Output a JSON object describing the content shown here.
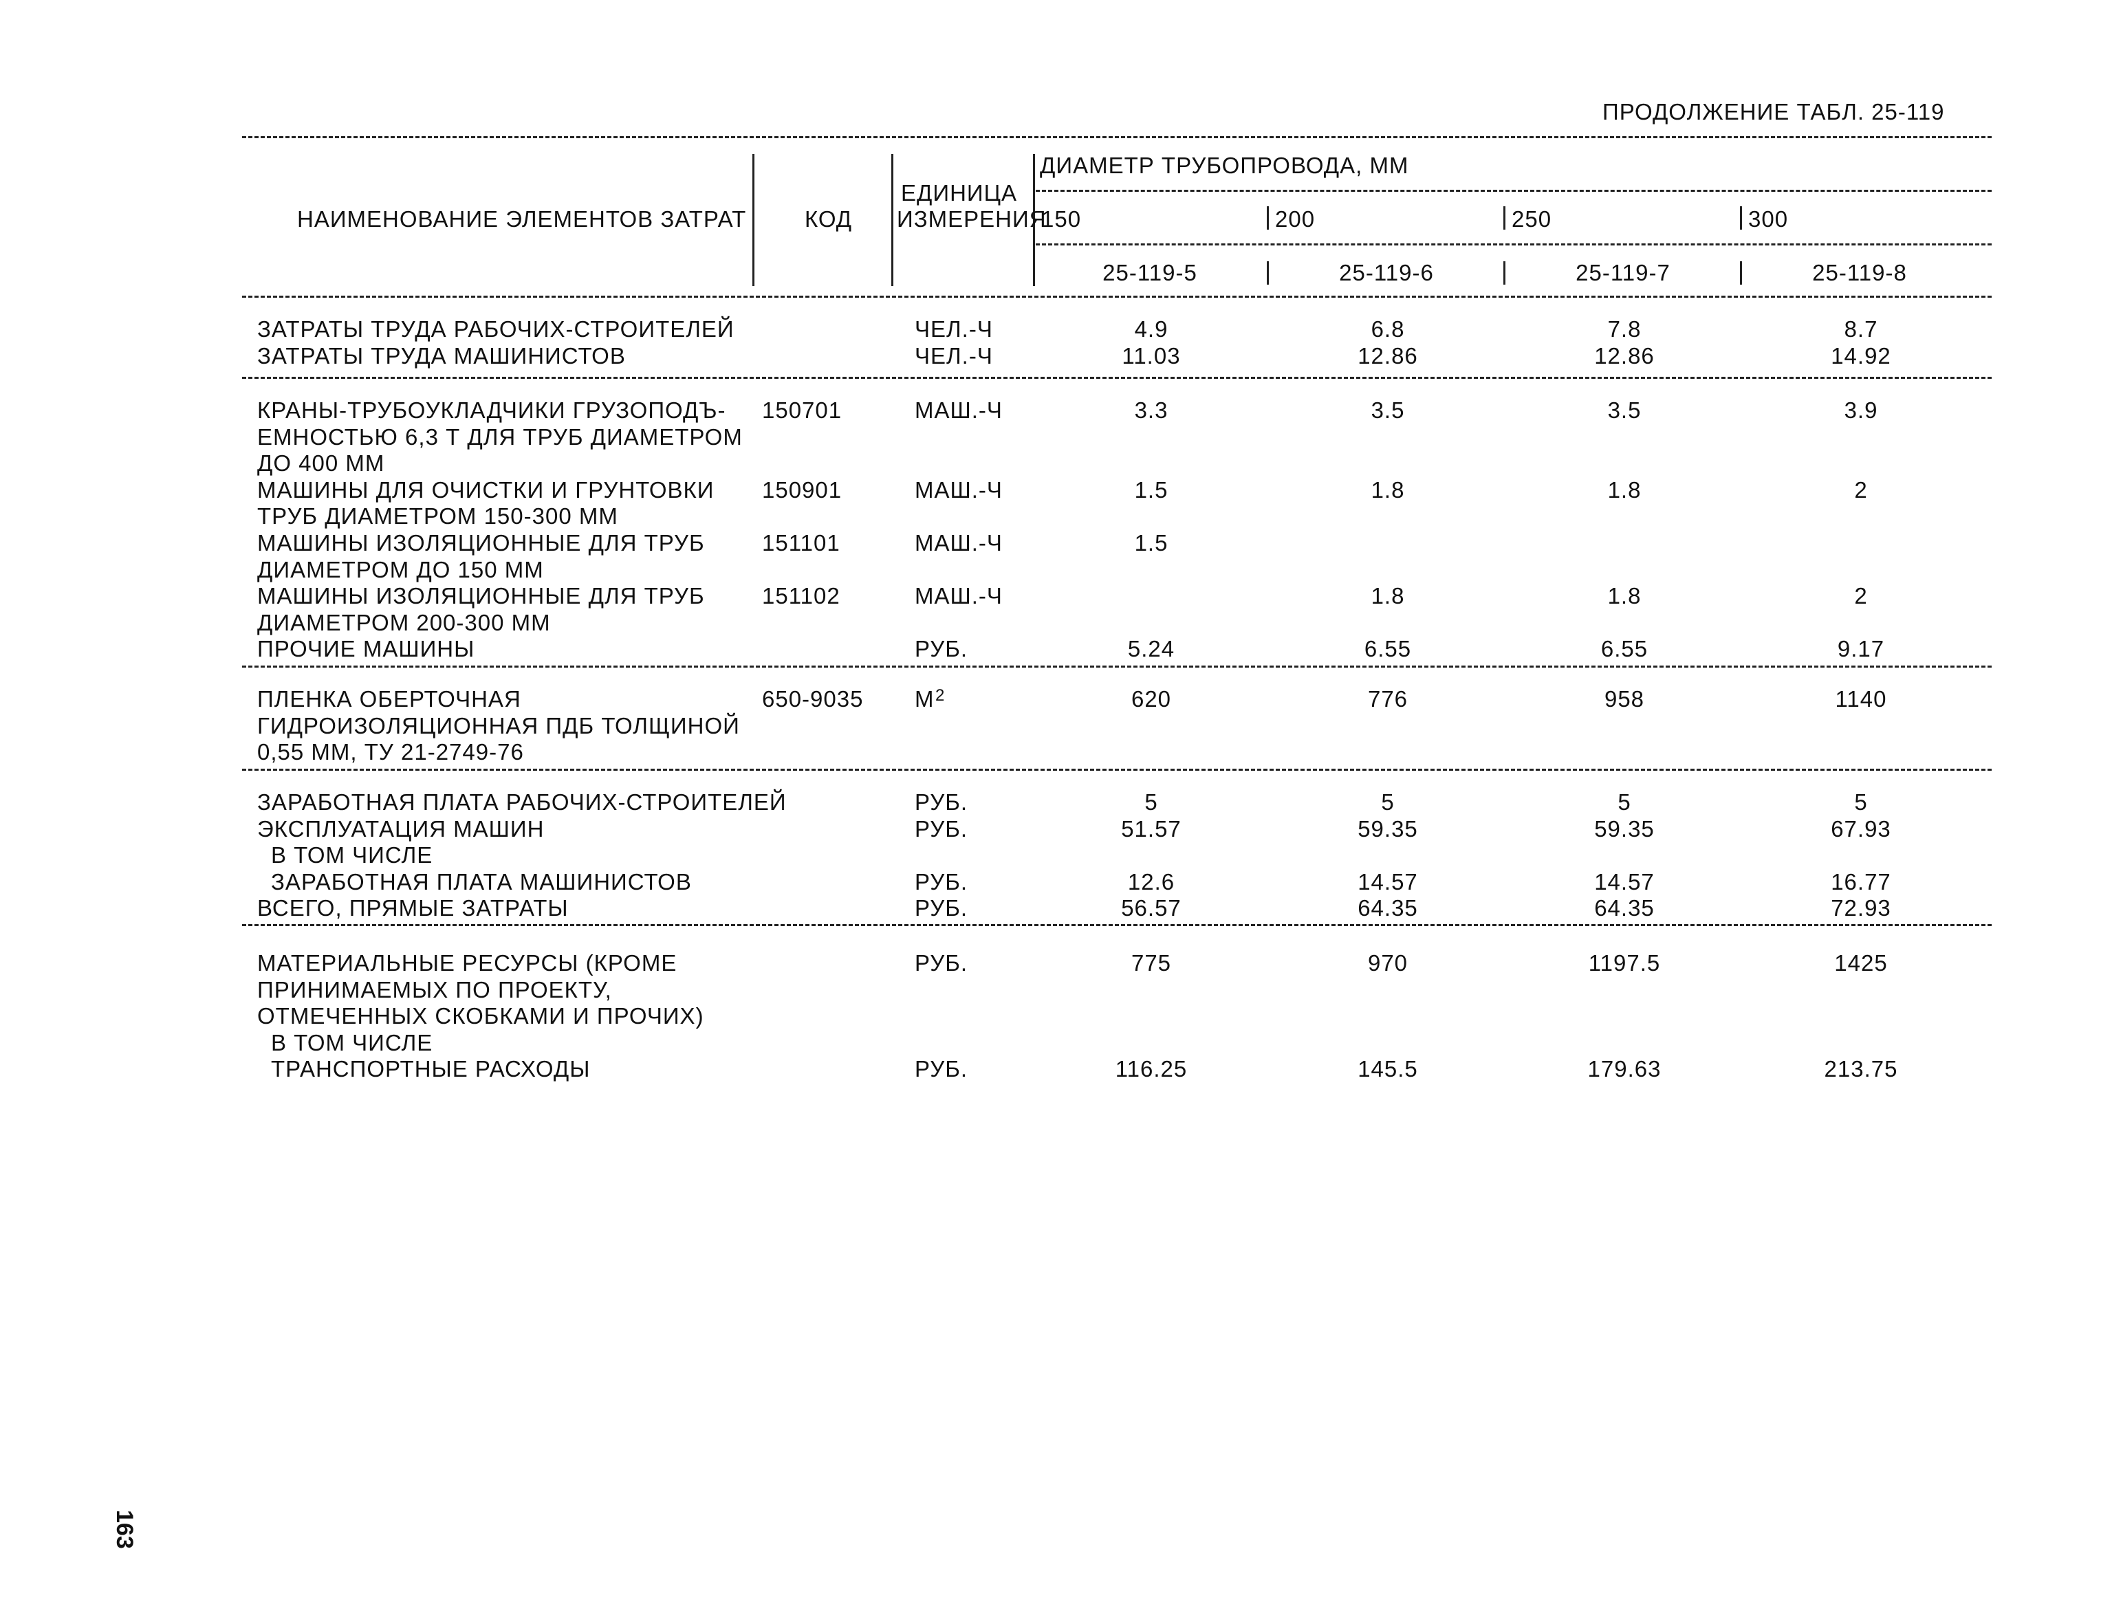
{
  "page": {
    "continuation": "ПРОДОЛЖЕНИЕ ТАБЛ. 25-119",
    "page_number": "163"
  },
  "header": {
    "name": "НАИМЕНОВАНИЕ ЭЛЕМЕНТОВ ЗАТРАТ",
    "code": "КОД",
    "unit_line1": "ЕДИНИЦА",
    "unit_line2": "ИЗМЕРЕНИЯ",
    "diameter": "ДИАМЕТР ТРУБОПРОВОДА, ММ",
    "diameters": [
      "150",
      "200",
      "250",
      "300"
    ],
    "codes": [
      "25-119-5",
      "25-119-6",
      "25-119-7",
      "25-119-8"
    ]
  },
  "sections": [
    {
      "rows": [
        {
          "name": [
            "ЗАТРАТЫ ТРУДА РАБОЧИХ-СТРОИТЕЛЕЙ"
          ],
          "code": "",
          "unit": "ЧЕЛ.-Ч",
          "values": [
            "4.9",
            "6.8",
            "7.8",
            "8.7"
          ]
        },
        {
          "name": [
            "ЗАТРАТЫ ТРУДА МАШИНИСТОВ"
          ],
          "code": "",
          "unit": "ЧЕЛ.-Ч",
          "values": [
            "11.03",
            "12.86",
            "12.86",
            "14.92"
          ]
        }
      ]
    },
    {
      "rows": [
        {
          "name": [
            "КРАНЫ-ТРУБОУКЛАДЧИКИ ГРУЗОПОДЪ-",
            "ЕМНОСТЬЮ 6,3 Т ДЛЯ ТРУБ ДИАМЕТРОМ",
            "ДО 400 ММ"
          ],
          "code": "150701",
          "unit": "МАШ.-Ч",
          "values": [
            "3.3",
            "3.5",
            "3.5",
            "3.9"
          ]
        },
        {
          "name": [
            "МАШИНЫ ДЛЯ ОЧИСТКИ И ГРУНТОВКИ",
            "ТРУБ ДИАМЕТРОМ 150-300 ММ"
          ],
          "code": "150901",
          "unit": "МАШ.-Ч",
          "values": [
            "1.5",
            "1.8",
            "1.8",
            "2"
          ]
        },
        {
          "name": [
            "МАШИНЫ ИЗОЛЯЦИОННЫЕ ДЛЯ ТРУБ",
            "ДИАМЕТРОМ ДО 150 ММ"
          ],
          "code": "151101",
          "unit": "МАШ.-Ч",
          "values": [
            "1.5",
            "",
            "",
            ""
          ]
        },
        {
          "name": [
            "МАШИНЫ ИЗОЛЯЦИОННЫЕ ДЛЯ ТРУБ",
            "ДИАМЕТРОМ 200-300 ММ"
          ],
          "code": "151102",
          "unit": "МАШ.-Ч",
          "values": [
            "",
            "1.8",
            "1.8",
            "2"
          ]
        },
        {
          "name": [
            "ПРОЧИЕ МАШИНЫ"
          ],
          "code": "",
          "unit": "РУБ.",
          "values": [
            "5.24",
            "6.55",
            "6.55",
            "9.17"
          ]
        }
      ]
    },
    {
      "rows": [
        {
          "name": [
            "ПЛЕНКА ОБЕРТОЧНАЯ",
            "ГИДРОИЗОЛЯЦИОННАЯ ПДБ ТОЛЩИНОЙ",
            "0,55 ММ, ТУ 21-2749-76"
          ],
          "code": "650-9035",
          "unit": "М",
          "unit_sup": "2",
          "values": [
            "620",
            "776",
            "958",
            "1140"
          ]
        }
      ]
    },
    {
      "rows": [
        {
          "name": [
            "ЗАРАБОТНАЯ ПЛАТА РАБОЧИХ-СТРОИТЕЛЕЙ"
          ],
          "code": "",
          "unit": "РУБ.",
          "values": [
            "5",
            "5",
            "5",
            "5"
          ]
        },
        {
          "name": [
            "ЭКСПЛУАТАЦИЯ МАШИН"
          ],
          "code": "",
          "unit": "РУБ.",
          "values": [
            "51.57",
            "59.35",
            "59.35",
            "67.93"
          ]
        },
        {
          "name": [
            " В ТОМ ЧИСЛЕ"
          ],
          "code": "",
          "unit": "",
          "values": [
            "",
            "",
            "",
            ""
          ]
        },
        {
          "name": [
            " ЗАРАБОТНАЯ ПЛАТА МАШИНИСТОВ"
          ],
          "code": "",
          "unit": "РУБ.",
          "values": [
            "12.6",
            "14.57",
            "14.57",
            "16.77"
          ]
        },
        {
          "name": [
            "ВСЕГО, ПРЯМЫЕ ЗАТРАТЫ"
          ],
          "code": "",
          "unit": "РУБ.",
          "values": [
            "56.57",
            "64.35",
            "64.35",
            "72.93"
          ]
        }
      ]
    },
    {
      "rows": [
        {
          "name": [
            "МАТЕРИАЛЬНЫЕ РЕСУРСЫ (КРОМЕ",
            "ПРИНИМАЕМЫХ ПО ПРОЕКТУ,",
            "ОТМЕЧЕННЫХ СКОБКАМИ И ПРОЧИХ)"
          ],
          "code": "",
          "unit": "РУБ.",
          "values": [
            "775",
            "970",
            "1197.5",
            "1425"
          ]
        },
        {
          "name": [
            " В ТОМ ЧИСЛЕ"
          ],
          "code": "",
          "unit": "",
          "values": [
            "",
            "",
            "",
            ""
          ]
        },
        {
          "name": [
            " ТРАНСПОРТНЫЕ РАСХОДЫ"
          ],
          "code": "",
          "unit": "РУБ.",
          "values": [
            "116.25",
            "145.5",
            "179.63",
            "213.75"
          ]
        }
      ]
    }
  ]
}
